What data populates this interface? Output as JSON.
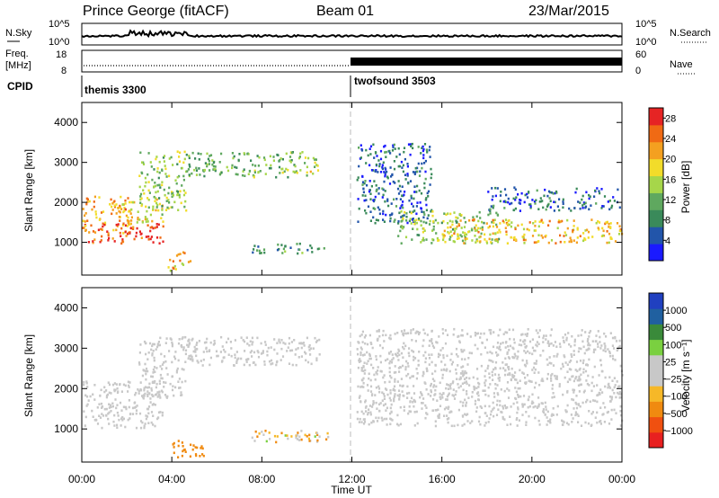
{
  "header": {
    "station": "Prince George (fitACF)",
    "beam": "Beam 01",
    "date": "23/Mar/2015"
  },
  "nsky_panel": {
    "left_label": "N.Sky",
    "right_label": "N.Search",
    "left_ticks": [
      "10^5",
      "10^0"
    ],
    "right_ticks": [
      "10^5",
      "10^0"
    ]
  },
  "freq_panel": {
    "left_label_1": "Freq.",
    "left_label_2": "[MHz]",
    "right_label": "Nave",
    "left_ticks": [
      "18",
      "8"
    ],
    "right_ticks": [
      "60",
      "0"
    ]
  },
  "cpid_panel": {
    "label": "CPID",
    "segments": [
      "themis 3300",
      "twofsound 3503"
    ]
  },
  "colors": {
    "power_scale": [
      "#1a1aff",
      "#2255aa",
      "#3a8a5a",
      "#5fa85f",
      "#a6d64a",
      "#f2dc2a",
      "#f4a020",
      "#f06a14",
      "#e62424"
    ],
    "velocity_scale": [
      "#e82020",
      "#f05010",
      "#f08a10",
      "#f6b828",
      "#c8c8c8",
      "#c8c8c8",
      "#7ad040",
      "#3a8a3a",
      "#2060a0",
      "#2040c0"
    ]
  },
  "chart_data": [
    {
      "type": "heatmap",
      "title": "",
      "xlabel": "Time UT",
      "ylabel": "Slant Range [km]",
      "xlim": [
        "00:00",
        "24:00"
      ],
      "ylim": [
        180,
        4500
      ],
      "x_ticks": [
        "00:00",
        "04:00",
        "08:00",
        "12:00",
        "16:00",
        "20:00",
        "00:00"
      ],
      "y_ticks": [
        "1000",
        "2000",
        "3000",
        "4000"
      ],
      "colorbar": {
        "label": "Power [dB]",
        "ticks": [
          "4",
          "8",
          "12",
          "16",
          "20",
          "24",
          "28"
        ],
        "range": [
          0,
          30
        ]
      },
      "regions": [
        {
          "t0": 0.0,
          "t1": 2.2,
          "r0": 1250,
          "r1": 2200,
          "level": 22
        },
        {
          "t0": 0.2,
          "t1": 3.6,
          "r0": 1000,
          "r1": 1500,
          "level": 27
        },
        {
          "t0": 1.6,
          "t1": 3.6,
          "r0": 1500,
          "r1": 2100,
          "level": 18
        },
        {
          "t0": 2.5,
          "t1": 4.6,
          "r0": 1800,
          "r1": 3300,
          "level": 14
        },
        {
          "t0": 4.6,
          "t1": 9.8,
          "r0": 2650,
          "r1": 3300,
          "level": 12
        },
        {
          "t0": 9.8,
          "t1": 10.6,
          "r0": 2500,
          "r1": 3150,
          "level": 16
        },
        {
          "t0": 7.5,
          "t1": 11.0,
          "r0": 750,
          "r1": 1000,
          "level": 10
        },
        {
          "t0": 3.8,
          "t1": 4.8,
          "r0": 300,
          "r1": 800,
          "level": 20
        },
        {
          "t0": 12.2,
          "t1": 15.5,
          "r0": 1500,
          "r1": 3500,
          "level": 6
        },
        {
          "t0": 14.0,
          "t1": 18.5,
          "r0": 1000,
          "r1": 1800,
          "level": 14
        },
        {
          "t0": 16.0,
          "t1": 24.0,
          "r0": 1000,
          "r1": 1600,
          "level": 20
        },
        {
          "t0": 18.0,
          "t1": 24.0,
          "r0": 1800,
          "r1": 2400,
          "level": 6
        }
      ]
    },
    {
      "type": "heatmap",
      "title": "",
      "xlabel": "Time UT",
      "ylabel": "Slant Range [km]",
      "xlim": [
        "00:00",
        "24:00"
      ],
      "ylim": [
        180,
        4500
      ],
      "x_ticks": [
        "00:00",
        "04:00",
        "08:00",
        "12:00",
        "16:00",
        "20:00",
        "00:00"
      ],
      "y_ticks": [
        "1000",
        "2000",
        "3000",
        "4000"
      ],
      "colorbar": {
        "label": "Velocity [m s⁻¹]",
        "ticks": [
          "1000",
          "500",
          "100",
          "25",
          "−25",
          "−100",
          "−500",
          "−1000"
        ],
        "range": [
          -1000,
          1000
        ]
      },
      "regions": [
        {
          "t0": 0.0,
          "t1": 3.6,
          "r0": 1050,
          "r1": 2200,
          "level": 0
        },
        {
          "t0": 2.5,
          "t1": 4.6,
          "r0": 1800,
          "r1": 3300,
          "level": 0
        },
        {
          "t0": 4.6,
          "t1": 10.6,
          "r0": 2600,
          "r1": 3300,
          "level": 0
        },
        {
          "t0": 7.5,
          "t1": 11.0,
          "r0": 700,
          "r1": 1000,
          "level": -60
        },
        {
          "t0": 4.0,
          "t1": 5.4,
          "r0": 300,
          "r1": 750,
          "level": -200
        },
        {
          "t0": 12.2,
          "t1": 24.0,
          "r0": 1100,
          "r1": 3500,
          "level": 0
        }
      ]
    }
  ],
  "x_axis": {
    "label": "Time UT",
    "ticks": [
      "00:00",
      "04:00",
      "08:00",
      "12:00",
      "16:00",
      "20:00",
      "00:00"
    ]
  }
}
